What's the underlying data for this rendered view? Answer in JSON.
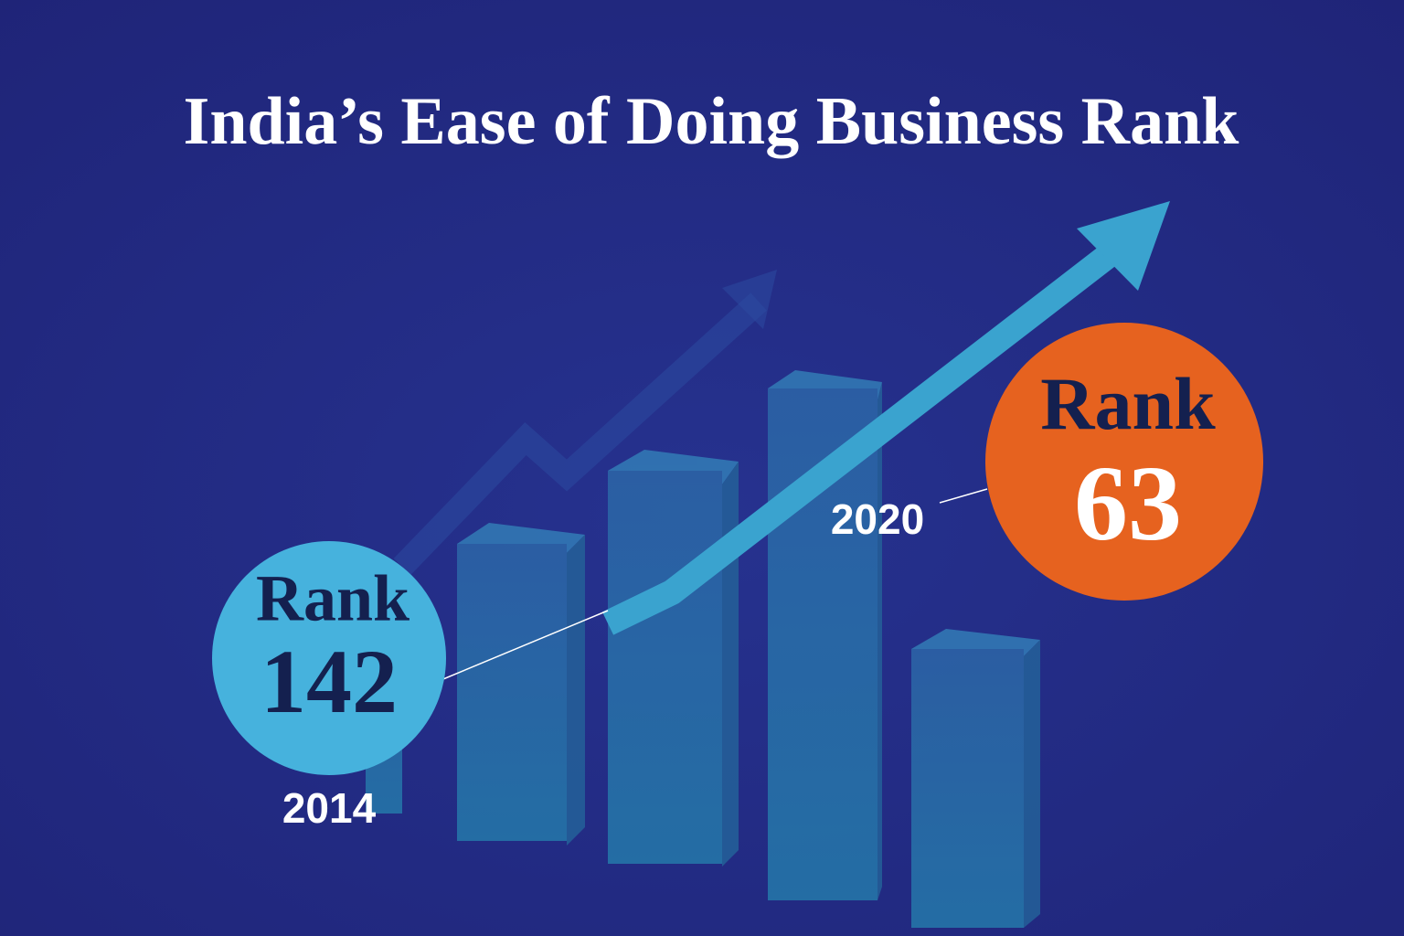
{
  "title": "India’s Ease of Doing Business Rank",
  "milestones": [
    {
      "label": "Rank",
      "rank": 142,
      "year": "2014"
    },
    {
      "label": "Rank",
      "rank": 63,
      "year": "2020"
    }
  ]
}
